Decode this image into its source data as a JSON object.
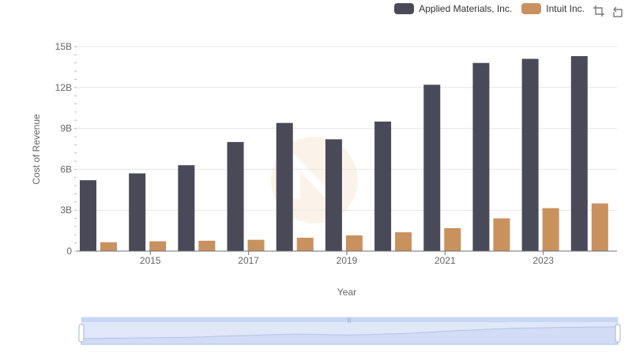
{
  "chart_data": {
    "type": "bar",
    "title": "",
    "xlabel": "Year",
    "ylabel": "Cost of Revenue",
    "categories": [
      "2014",
      "2015",
      "2016",
      "2017",
      "2018",
      "2019",
      "2020",
      "2021",
      "2022",
      "2023",
      "2024"
    ],
    "x_tick_labels": [
      "2015",
      "2017",
      "2019",
      "2021",
      "2023"
    ],
    "ylim": [
      0,
      15
    ],
    "y_tick_labels": [
      "0",
      "3B",
      "6B",
      "9B",
      "12B",
      "15B"
    ],
    "y_unit": "billions",
    "series": [
      {
        "name": "Applied Materials, Inc.",
        "color": "#4a4957",
        "values": [
          5.2,
          5.7,
          6.3,
          8.0,
          9.4,
          8.2,
          9.5,
          12.2,
          13.8,
          14.1,
          14.3
        ]
      },
      {
        "name": "Intuit Inc.",
        "color": "#c8915e",
        "values": [
          0.65,
          0.72,
          0.76,
          0.83,
          0.98,
          1.15,
          1.38,
          1.68,
          2.4,
          3.15,
          3.5
        ]
      }
    ],
    "legend_position": "top-right"
  },
  "legend": {
    "items": [
      {
        "label": "Applied Materials, Inc.",
        "color": "#4a4957"
      },
      {
        "label": "Intuit Inc.",
        "color": "#c8915e"
      }
    ]
  },
  "toolbox": {
    "zoom_icon": "zoom-icon",
    "reset_icon": "restore-icon"
  },
  "datazoom": {
    "start_percent": 0,
    "end_percent": 100
  }
}
